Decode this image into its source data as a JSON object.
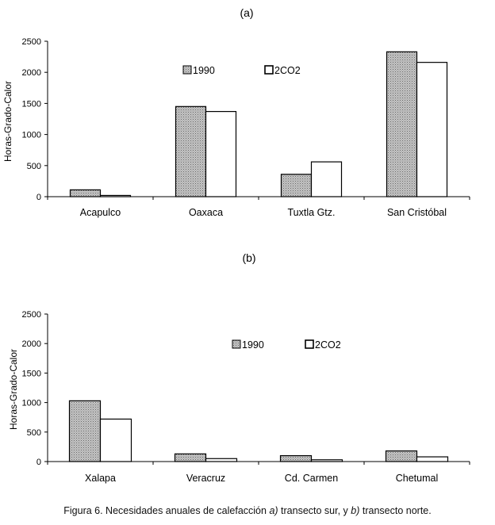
{
  "caption": {
    "prefix": "Figura 6. Necesidades anuales de calefacción ",
    "a_part": "a)",
    "middle": " transecto sur, y ",
    "b_part": "b)",
    "suffix": " transecto norte."
  },
  "colors": {
    "series_1990": "#b9b9b9",
    "series_2co2": "#ffffff",
    "stroke": "#000000"
  },
  "chart_data": [
    {
      "type": "bar",
      "panel_label": "(a)",
      "ylabel": "Horas-Grado-Calor",
      "ylim": [
        0,
        2500
      ],
      "yticks": [
        "0",
        "500",
        "1000",
        "1500",
        "2000",
        "2500"
      ],
      "categories": [
        "Acapulco",
        "Oaxaca",
        "Tuxtla Gtz.",
        "San Cristóbal"
      ],
      "series": [
        {
          "name": "1990",
          "values": [
            110,
            1450,
            360,
            2330
          ]
        },
        {
          "name": "2CO2",
          "values": [
            20,
            1370,
            560,
            2160
          ]
        }
      ],
      "legend": "top-center",
      "grid": false
    },
    {
      "type": "bar",
      "panel_label": "(b)",
      "ylabel": "Horas-Grado-Calor",
      "ylim": [
        0,
        2500
      ],
      "yticks": [
        "0",
        "500",
        "1000",
        "1500",
        "2000",
        "2500"
      ],
      "categories": [
        "Xalapa",
        "Veracruz",
        "Cd. Carmen",
        "Chetumal"
      ],
      "series": [
        {
          "name": "1990",
          "values": [
            1030,
            130,
            100,
            180
          ]
        },
        {
          "name": "2CO2",
          "values": [
            720,
            50,
            30,
            80
          ]
        }
      ],
      "legend": "top-center",
      "grid": false
    }
  ]
}
